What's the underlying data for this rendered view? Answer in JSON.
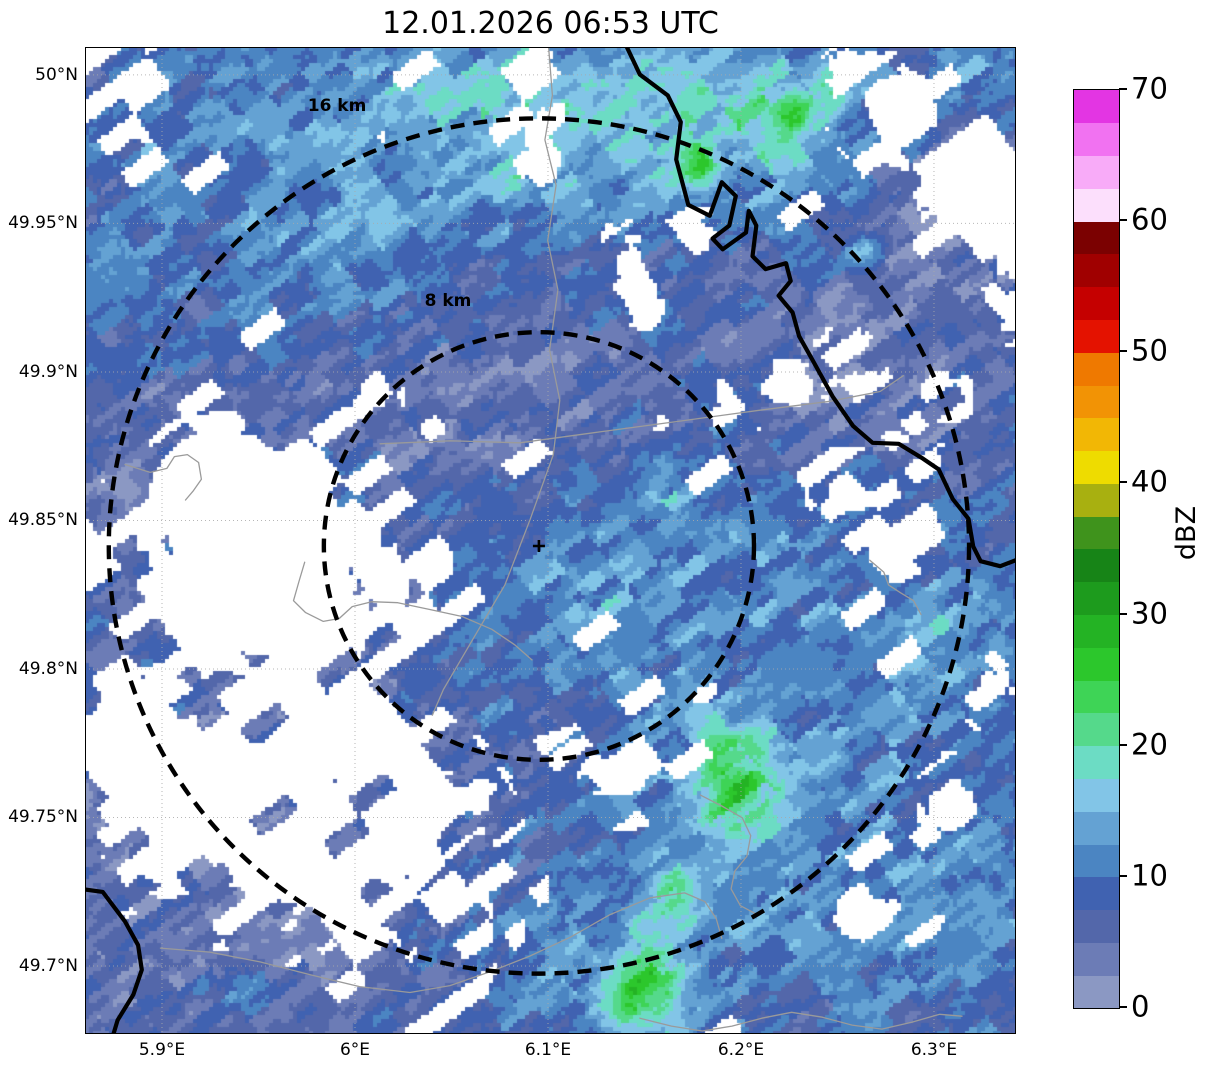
{
  "title": "12.01.2026 06:53 UTC",
  "chart_data": {
    "type": "heatmap",
    "title": "12.01.2026 06:53 UTC",
    "description": "Radar reflectivity PPI map over the Luxembourg region with 8 km and 16 km range rings around the radar site",
    "x_axis": {
      "label": "",
      "tick_labels": [
        "5.9°E",
        "6°E",
        "6.1°E",
        "6.2°E",
        "6.3°E"
      ],
      "tick_values": [
        5.9,
        6.0,
        6.1,
        6.2,
        6.3
      ],
      "range": [
        5.8601,
        6.3425
      ]
    },
    "y_axis": {
      "label": "",
      "tick_labels": [
        "49.7°N",
        "49.75°N",
        "49.8°N",
        "49.85°N",
        "49.9°N",
        "49.95°N",
        "50°N"
      ],
      "tick_values": [
        49.7,
        49.75,
        49.8,
        49.85,
        49.9,
        49.95,
        50.0
      ],
      "range": [
        49.6771,
        50.0094
      ]
    },
    "grid": {
      "on": true,
      "color": "#aaaaaa",
      "style": "dotted"
    },
    "radar_center": {
      "lon": 6.0953,
      "lat": 49.8414,
      "marker": "+"
    },
    "range_rings": [
      {
        "radius_km": 8,
        "label": "8 km",
        "label_lon": 6.0482,
        "label_lat": 49.9222
      },
      {
        "radius_km": 16,
        "label": "16 km",
        "label_lon": 5.9907,
        "label_lat": 49.9879
      }
    ],
    "colorbar": {
      "label": "dBZ",
      "tick_values": [
        0,
        10,
        20,
        30,
        40,
        50,
        60,
        70
      ],
      "vmin": 0,
      "vmax": 70,
      "step": 2.5,
      "colors": [
        "#8b98c3",
        "#6c7cb6",
        "#5367aa",
        "#4062b1",
        "#4b85c2",
        "#64a2d3",
        "#82c5e7",
        "#6cdcc4",
        "#55d98b",
        "#3ed456",
        "#2cc72c",
        "#24b324",
        "#1d9b1d",
        "#178417",
        "#3f931c",
        "#a8b010",
        "#eedc00",
        "#f2b705",
        "#f29305",
        "#ef7900",
        "#e41200",
        "#c50000",
        "#a00000",
        "#7b0101",
        "#fcdffc",
        "#f8abf8",
        "#f172f1",
        "#e335e3"
      ]
    },
    "field": {
      "no_data_color": "#ffffff",
      "base_dbz": 7,
      "streak_angle_deg": 36,
      "cell_u": 40,
      "cell_v": 16,
      "cell_u2": 18,
      "cell_v2": 8,
      "hole_u": 46,
      "hole_v": 20,
      "noise1": 7,
      "noise2": 3.5,
      "hole_base": 0.03,
      "value_blobs": [
        {
          "x": 0.52,
          "y": 0.05,
          "rx": 0.32,
          "ry": 0.13,
          "a": 7
        },
        {
          "x": 0.72,
          "y": 0.08,
          "rx": 0.12,
          "ry": 0.07,
          "a": 6.5
        },
        {
          "x": 0.95,
          "y": 0.02,
          "rx": 0.06,
          "ry": 0.04,
          "a": 5
        },
        {
          "x": 0.755,
          "y": 0.062,
          "rx": 0.022,
          "ry": 0.022,
          "a": 9
        },
        {
          "x": 0.8,
          "y": 0.035,
          "rx": 0.018,
          "ry": 0.025,
          "a": 8
        },
        {
          "x": 0.66,
          "y": 0.125,
          "rx": 0.018,
          "ry": 0.025,
          "a": 10
        },
        {
          "x": 0.835,
          "y": 0.205,
          "rx": 0.02,
          "ry": 0.018,
          "a": 9
        },
        {
          "x": 0.46,
          "y": 0.1,
          "rx": 0.09,
          "ry": 0.07,
          "a": 4
        },
        {
          "x": 0.15,
          "y": 0.15,
          "rx": 0.2,
          "ry": 0.16,
          "a": 3
        },
        {
          "x": 0.3,
          "y": 0.2,
          "rx": 0.07,
          "ry": 0.06,
          "a": 4.5
        },
        {
          "x": 0.68,
          "y": 0.52,
          "rx": 0.2,
          "ry": 0.15,
          "a": 4.5
        },
        {
          "x": 0.615,
          "y": 0.44,
          "rx": 0.03,
          "ry": 0.035,
          "a": 6
        },
        {
          "x": 0.72,
          "y": 0.8,
          "rx": 0.2,
          "ry": 0.15,
          "a": 6
        },
        {
          "x": 0.695,
          "y": 0.748,
          "rx": 0.045,
          "ry": 0.055,
          "a": 13
        },
        {
          "x": 0.6,
          "y": 0.95,
          "rx": 0.05,
          "ry": 0.05,
          "a": 15
        },
        {
          "x": 0.635,
          "y": 0.855,
          "rx": 0.028,
          "ry": 0.03,
          "a": 8
        },
        {
          "x": 0.92,
          "y": 0.62,
          "rx": 0.08,
          "ry": 0.07,
          "a": 4
        },
        {
          "x": 0.95,
          "y": 0.88,
          "rx": 0.1,
          "ry": 0.11,
          "a": 4
        },
        {
          "x": 0.93,
          "y": 0.56,
          "rx": 0.08,
          "ry": 0.07,
          "a": 3.5
        },
        {
          "x": 0.5,
          "y": 0.56,
          "rx": 0.13,
          "ry": 0.1,
          "a": 3.5
        },
        {
          "x": 0.5,
          "y": 0.93,
          "rx": 0.15,
          "ry": 0.1,
          "a": 3.5
        },
        {
          "x": 0.165,
          "y": 0.95,
          "rx": 0.03,
          "ry": 0.025,
          "a": 7
        },
        {
          "x": 0.44,
          "y": 0.37,
          "rx": 0.15,
          "ry": 0.1,
          "a": -3.5
        },
        {
          "x": 0.93,
          "y": 0.16,
          "rx": 0.1,
          "ry": 0.09,
          "a": -5
        },
        {
          "x": 0.8,
          "y": 0.33,
          "rx": 0.12,
          "ry": 0.09,
          "a": -4
        },
        {
          "x": 0.18,
          "y": 0.86,
          "rx": 0.2,
          "ry": 0.13,
          "a": -4
        },
        {
          "x": 0.04,
          "y": 0.42,
          "rx": 0.06,
          "ry": 0.1,
          "a": -3
        }
      ],
      "hole_blobs": [
        {
          "x": 0.195,
          "y": 0.52,
          "rx": 0.115,
          "ry": 0.115,
          "a": 1.6
        },
        {
          "x": 0.13,
          "y": 0.44,
          "rx": 0.07,
          "ry": 0.06,
          "a": 1.0
        },
        {
          "x": 0.16,
          "y": 0.78,
          "rx": 0.2,
          "ry": 0.105,
          "a": 0.75
        },
        {
          "x": 0.33,
          "y": 0.92,
          "rx": 0.1,
          "ry": 0.08,
          "a": 0.55
        },
        {
          "x": 0.05,
          "y": 0.68,
          "rx": 0.08,
          "ry": 0.07,
          "a": 0.8
        },
        {
          "x": 0.875,
          "y": 0.065,
          "rx": 0.05,
          "ry": 0.045,
          "a": 1.35
        },
        {
          "x": 0.965,
          "y": 0.145,
          "rx": 0.06,
          "ry": 0.05,
          "a": 1.3
        },
        {
          "x": 0.995,
          "y": 0.23,
          "rx": 0.03,
          "ry": 0.045,
          "a": 0.9
        },
        {
          "x": 0.815,
          "y": 0.012,
          "rx": 0.02,
          "ry": 0.02,
          "a": 0.85
        },
        {
          "x": 0.825,
          "y": 0.45,
          "rx": 0.045,
          "ry": 0.035,
          "a": 1.0
        },
        {
          "x": 0.87,
          "y": 0.51,
          "rx": 0.03,
          "ry": 0.027,
          "a": 0.85
        },
        {
          "x": 0.49,
          "y": 0.075,
          "rx": 0.018,
          "ry": 0.05,
          "a": 1.05
        },
        {
          "x": 0.585,
          "y": 0.215,
          "rx": 0.025,
          "ry": 0.04,
          "a": 0.95
        },
        {
          "x": 0.655,
          "y": 0.195,
          "rx": 0.022,
          "ry": 0.018,
          "a": 0.75
        },
        {
          "x": 0.315,
          "y": 0.355,
          "rx": 0.02,
          "ry": 0.03,
          "a": 0.9
        },
        {
          "x": 0.565,
          "y": 0.735,
          "rx": 0.05,
          "ry": 0.032,
          "a": 1.15
        },
        {
          "x": 0.35,
          "y": 0.795,
          "rx": 0.04,
          "ry": 0.04,
          "a": 0.9
        },
        {
          "x": 0.85,
          "y": 0.87,
          "rx": 0.035,
          "ry": 0.022,
          "a": 0.9
        },
        {
          "x": 0.93,
          "y": 0.765,
          "rx": 0.03,
          "ry": 0.03,
          "a": 0.8
        },
        {
          "x": 0.97,
          "y": 0.64,
          "rx": 0.025,
          "ry": 0.03,
          "a": 0.75
        },
        {
          "x": 0.75,
          "y": 0.345,
          "rx": 0.045,
          "ry": 0.033,
          "a": 1.15
        },
        {
          "x": 0.92,
          "y": 0.345,
          "rx": 0.032,
          "ry": 0.025,
          "a": 0.85
        },
        {
          "x": 0.6,
          "y": 0.26,
          "rx": 0.014,
          "ry": 0.018,
          "a": 0.8
        },
        {
          "x": 0.615,
          "y": 0.375,
          "rx": 0.012,
          "ry": 0.016,
          "a": 0.75
        },
        {
          "x": 0.66,
          "y": 0.65,
          "rx": 0.02,
          "ry": 0.015,
          "a": 0.7
        },
        {
          "x": 0.08,
          "y": 0.06,
          "rx": 0.1,
          "ry": 0.08,
          "a": 0.28
        },
        {
          "x": 0.3,
          "y": 0.7,
          "rx": 0.08,
          "ry": 0.05,
          "a": 0.6
        },
        {
          "x": 0.42,
          "y": 0.76,
          "rx": 0.05,
          "ry": 0.04,
          "a": 0.7
        },
        {
          "x": 0.1,
          "y": 0.97,
          "rx": 0.14,
          "ry": 0.06,
          "a": -0.5
        }
      ]
    },
    "map_layers": {
      "border_color": "#000000",
      "river_color": "#9a9a9a",
      "borders": [
        [
          [
            0.582,
            0.0
          ],
          [
            0.596,
            0.028
          ],
          [
            0.626,
            0.049
          ],
          [
            0.64,
            0.076
          ],
          [
            0.635,
            0.114
          ],
          [
            0.648,
            0.16
          ],
          [
            0.671,
            0.171
          ],
          [
            0.684,
            0.137
          ],
          [
            0.699,
            0.151
          ],
          [
            0.692,
            0.181
          ],
          [
            0.674,
            0.194
          ],
          [
            0.685,
            0.205
          ],
          [
            0.71,
            0.188
          ],
          [
            0.713,
            0.166
          ],
          [
            0.721,
            0.181
          ],
          [
            0.717,
            0.212
          ],
          [
            0.731,
            0.225
          ],
          [
            0.753,
            0.219
          ],
          [
            0.758,
            0.237
          ],
          [
            0.745,
            0.252
          ],
          [
            0.76,
            0.269
          ],
          [
            0.767,
            0.293
          ],
          [
            0.782,
            0.318
          ],
          [
            0.803,
            0.354
          ],
          [
            0.825,
            0.384
          ],
          [
            0.846,
            0.401
          ],
          [
            0.874,
            0.402
          ],
          [
            0.9,
            0.417
          ],
          [
            0.917,
            0.428
          ],
          [
            0.932,
            0.458
          ],
          [
            0.949,
            0.478
          ],
          [
            0.954,
            0.506
          ],
          [
            0.962,
            0.521
          ],
          [
            0.983,
            0.526
          ],
          [
            1.005,
            0.518
          ]
        ],
        [
          [
            -0.005,
            0.853
          ],
          [
            0.019,
            0.856
          ],
          [
            0.043,
            0.886
          ],
          [
            0.057,
            0.91
          ],
          [
            0.061,
            0.935
          ],
          [
            0.052,
            0.96
          ],
          [
            0.035,
            0.986
          ],
          [
            0.029,
            1.005
          ]
        ]
      ],
      "rivers": [
        [
          [
            0.498,
            0.0
          ],
          [
            0.502,
            0.049
          ],
          [
            0.494,
            0.094
          ],
          [
            0.506,
            0.14
          ],
          [
            0.497,
            0.196
          ],
          [
            0.508,
            0.246
          ],
          [
            0.499,
            0.307
          ],
          [
            0.51,
            0.358
          ],
          [
            0.503,
            0.413
          ],
          [
            0.478,
            0.479
          ],
          [
            0.451,
            0.545
          ],
          [
            0.416,
            0.601
          ],
          [
            0.385,
            0.651
          ],
          [
            0.373,
            0.677
          ]
        ],
        [
          [
            0.317,
            0.402
          ],
          [
            0.392,
            0.399
          ],
          [
            0.467,
            0.401
          ],
          [
            0.553,
            0.39
          ],
          [
            0.639,
            0.379
          ],
          [
            0.725,
            0.368
          ],
          [
            0.8,
            0.359
          ],
          [
            0.854,
            0.349
          ],
          [
            0.879,
            0.333
          ]
        ],
        [
          [
            0.043,
            0.423
          ],
          [
            0.07,
            0.431
          ],
          [
            0.088,
            0.427
          ],
          [
            0.096,
            0.415
          ],
          [
            0.11,
            0.413
          ],
          [
            0.122,
            0.421
          ],
          [
            0.125,
            0.438
          ],
          [
            0.116,
            0.45
          ],
          [
            0.108,
            0.459
          ]
        ],
        [
          [
            0.236,
            0.522
          ],
          [
            0.23,
            0.541
          ],
          [
            0.224,
            0.561
          ],
          [
            0.237,
            0.573
          ],
          [
            0.256,
            0.582
          ],
          [
            0.273,
            0.579
          ],
          [
            0.287,
            0.567
          ],
          [
            0.308,
            0.562
          ],
          [
            0.336,
            0.563
          ],
          [
            0.371,
            0.57
          ],
          [
            0.405,
            0.577
          ],
          [
            0.437,
            0.59
          ],
          [
            0.462,
            0.606
          ],
          [
            0.48,
            0.621
          ]
        ],
        [
          [
            0.081,
            0.913
          ],
          [
            0.134,
            0.917
          ],
          [
            0.188,
            0.927
          ],
          [
            0.242,
            0.94
          ],
          [
            0.295,
            0.952
          ],
          [
            0.349,
            0.958
          ],
          [
            0.392,
            0.951
          ],
          [
            0.435,
            0.937
          ],
          [
            0.478,
            0.921
          ],
          [
            0.521,
            0.902
          ],
          [
            0.564,
            0.879
          ],
          [
            0.607,
            0.862
          ],
          [
            0.644,
            0.857
          ],
          [
            0.666,
            0.866
          ],
          [
            0.678,
            0.883
          ],
          [
            0.684,
            0.903
          ]
        ],
        [
          [
            0.661,
            0.758
          ],
          [
            0.684,
            0.769
          ],
          [
            0.706,
            0.781
          ],
          [
            0.715,
            0.799
          ],
          [
            0.711,
            0.82
          ],
          [
            0.698,
            0.835
          ],
          [
            0.694,
            0.853
          ],
          [
            0.704,
            0.87
          ],
          [
            0.722,
            0.879
          ]
        ],
        [
          [
            0.596,
            0.984
          ],
          [
            0.63,
            0.992
          ],
          [
            0.663,
            0.997
          ],
          [
            0.695,
            0.992
          ],
          [
            0.727,
            0.984
          ],
          [
            0.759,
            0.978
          ],
          [
            0.792,
            0.983
          ],
          [
            0.824,
            0.991
          ],
          [
            0.856,
            0.995
          ],
          [
            0.888,
            0.988
          ],
          [
            0.918,
            0.98
          ],
          [
            0.942,
            0.982
          ]
        ],
        [
          [
            0.843,
            0.52
          ],
          [
            0.858,
            0.532
          ],
          [
            0.863,
            0.545
          ],
          [
            0.876,
            0.553
          ],
          [
            0.89,
            0.561
          ],
          [
            0.898,
            0.575
          ]
        ]
      ]
    }
  },
  "style": {
    "background": "#ffffff",
    "ring_color": "#000000",
    "marker_color": "#000000",
    "km_per_deg_lat": 111.13,
    "km_per_deg_lon_equator": 111.32
  }
}
